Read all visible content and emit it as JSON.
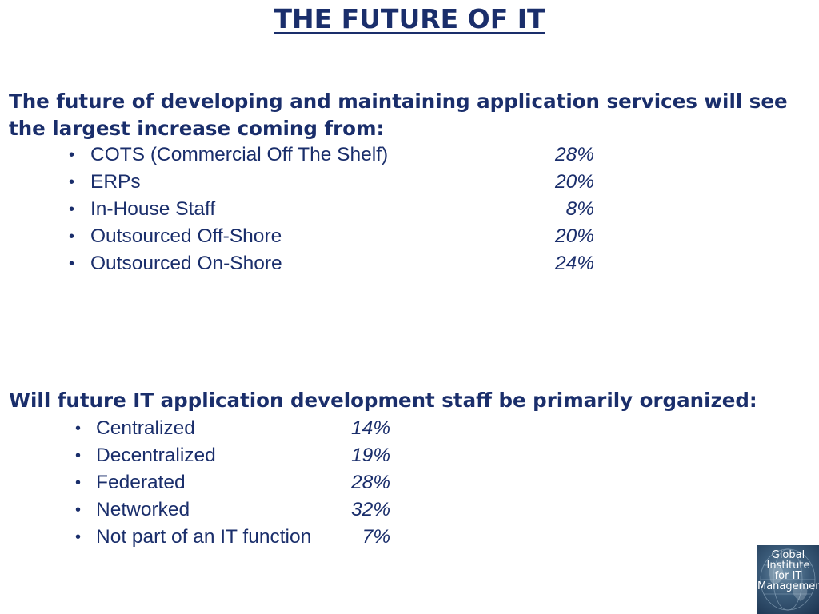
{
  "title": "THE FUTURE OF IT",
  "section1": {
    "question_line1": "The future of developing and maintaining application services will see",
    "question_line2": "the largest increase coming from:",
    "items": [
      {
        "label": "COTS (Commercial Off The Shelf)",
        "value": "28%"
      },
      {
        "label": "ERPs",
        "value": "20%"
      },
      {
        "label": "In-House Staff",
        "value": "8%"
      },
      {
        "label": "Outsourced Off-Shore",
        "value": "20%"
      },
      {
        "label": "Outsourced On-Shore",
        "value": "24%"
      }
    ]
  },
  "section2": {
    "question": "Will future IT application development staff be primarily organized:",
    "items": [
      {
        "label": "Centralized",
        "value": "14%"
      },
      {
        "label": "Decentralized",
        "value": "19%"
      },
      {
        "label": "Federated",
        "value": "28%"
      },
      {
        "label": "Networked",
        "value": "32%"
      },
      {
        "label": "Not part of an IT function",
        "value": "7%"
      }
    ]
  },
  "logo": {
    "line1": "Global",
    "line2": "Institute",
    "line3": "for IT",
    "line4": "Management"
  },
  "colors": {
    "text": "#1a2e6b",
    "background": "#ffffff"
  },
  "icons": {
    "bullet": "bullet-dot-icon"
  }
}
